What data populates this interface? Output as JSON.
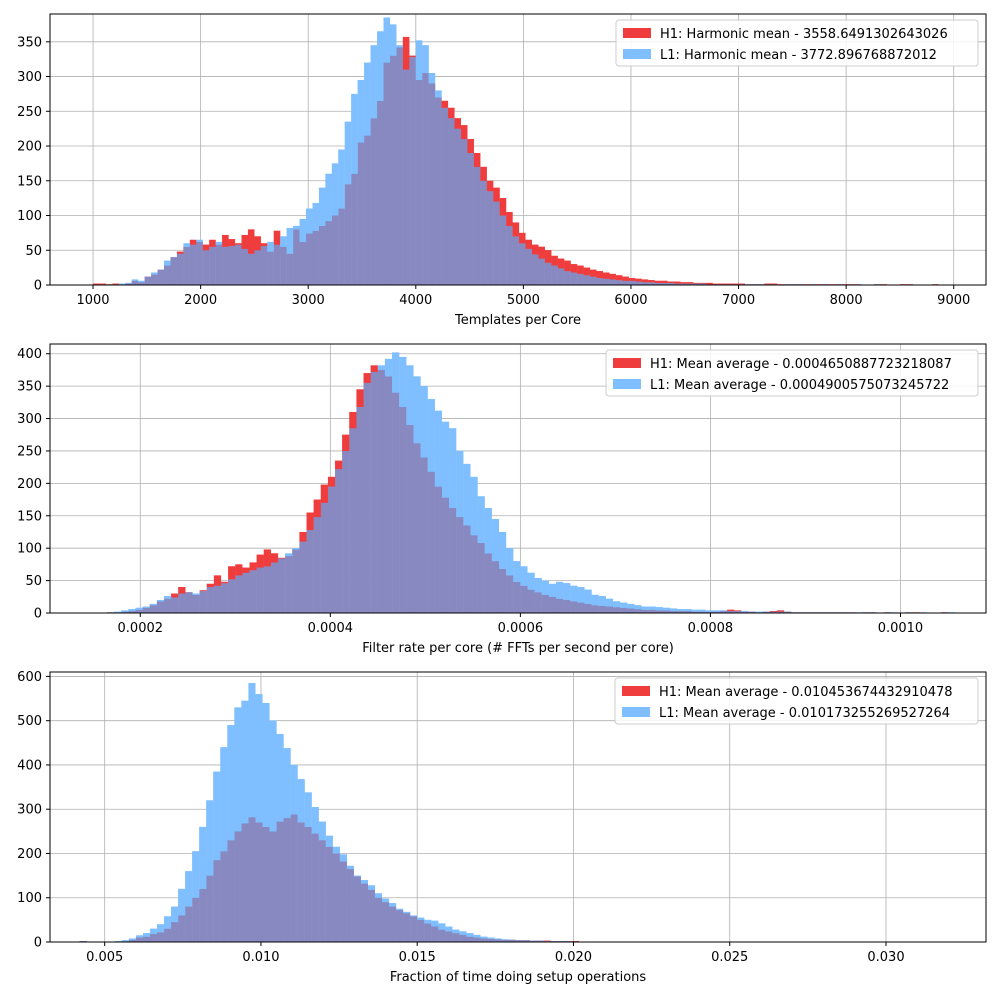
{
  "chart_data": [
    {
      "type": "histogram",
      "xlabel": "Templates per Core",
      "ylabel": "",
      "xlim": [
        600,
        9300
      ],
      "ylim": [
        0,
        390
      ],
      "xticks": [
        1000,
        2000,
        3000,
        4000,
        5000,
        6000,
        7000,
        8000,
        9000
      ],
      "yticks": [
        0,
        50,
        100,
        150,
        200,
        250,
        300,
        350
      ],
      "grid": true,
      "legend_position": "top-right",
      "bin_start": 1000,
      "bin_width": 60,
      "series": [
        {
          "name": "H1: Harmonic mean  - 3558.6491302643026",
          "color": "#ef3c3c",
          "values": [
            2,
            2,
            1,
            2,
            1,
            2,
            6,
            4,
            12,
            15,
            22,
            28,
            40,
            48,
            55,
            65,
            62,
            58,
            65,
            58,
            72,
            66,
            60,
            72,
            80,
            70,
            60,
            48,
            78,
            55,
            45,
            80,
            62,
            74,
            78,
            85,
            92,
            100,
            110,
            145,
            160,
            205,
            215,
            240,
            265,
            320,
            330,
            342,
            357,
            330,
            295,
            305,
            290,
            270,
            265,
            255,
            240,
            230,
            210,
            190,
            170,
            150,
            140,
            125,
            105,
            90,
            75,
            65,
            58,
            55,
            50,
            42,
            38,
            35,
            30,
            28,
            25,
            22,
            20,
            18,
            16,
            14,
            12,
            10,
            9,
            8,
            7,
            6,
            6,
            5,
            5,
            4,
            4,
            3,
            3,
            3,
            2,
            2,
            2,
            2,
            2,
            1,
            1,
            1,
            2,
            2,
            1,
            1,
            1,
            1,
            1,
            1,
            1,
            1,
            1,
            1,
            1,
            1,
            1,
            0,
            0,
            1,
            1,
            0,
            0,
            1,
            1,
            0,
            0,
            0,
            1,
            0,
            0
          ]
        },
        {
          "name": "L1: Harmonic mean  - 3772.896768872012",
          "color": "#7fbfff",
          "values": [
            0,
            1,
            0,
            1,
            2,
            3,
            8,
            6,
            12,
            18,
            22,
            35,
            40,
            45,
            60,
            58,
            65,
            50,
            55,
            62,
            55,
            56,
            58,
            52,
            45,
            50,
            56,
            62,
            58,
            70,
            82,
            85,
            95,
            110,
            118,
            140,
            160,
            175,
            195,
            235,
            275,
            295,
            320,
            345,
            365,
            385,
            375,
            345,
            310,
            328,
            352,
            345,
            305,
            280,
            255,
            240,
            225,
            210,
            190,
            170,
            150,
            135,
            120,
            100,
            85,
            70,
            60,
            52,
            44,
            38,
            32,
            28,
            24,
            20,
            18,
            16,
            14,
            12,
            10,
            9,
            8,
            7,
            6,
            6,
            5,
            4,
            4,
            3,
            3,
            3,
            2,
            2,
            2,
            2,
            2,
            1,
            1,
            1,
            1,
            1,
            1,
            1,
            1,
            1,
            1,
            1,
            0,
            1,
            1,
            1,
            0,
            1,
            0,
            1,
            0,
            1,
            0,
            0,
            1,
            0,
            0,
            1,
            0,
            0,
            0,
            0,
            0,
            0,
            0,
            0,
            0,
            0,
            0
          ]
        }
      ]
    },
    {
      "type": "histogram",
      "xlabel": "Filter rate per core (# FFTs per second per core)",
      "ylabel": "",
      "xlim": [
        0.000105,
        0.00109
      ],
      "ylim": [
        0,
        415
      ],
      "xticks": [
        0.0002,
        0.0004,
        0.0006,
        0.0008,
        0.001
      ],
      "xtick_labels": [
        "0.0002",
        "0.0004",
        "0.0006",
        "0.0008",
        "0.0010"
      ],
      "yticks": [
        0,
        50,
        100,
        150,
        200,
        250,
        300,
        350,
        400
      ],
      "grid": true,
      "legend_position": "top-right",
      "bin_start": 0.00015,
      "bin_width": 7.5e-06,
      "series": [
        {
          "name": "H1: Mean average - 0.0004650887723218087",
          "color": "#ef3c3c",
          "values": [
            0,
            0,
            1,
            0,
            2,
            3,
            5,
            8,
            12,
            18,
            22,
            30,
            40,
            32,
            28,
            35,
            45,
            58,
            48,
            72,
            75,
            70,
            78,
            90,
            98,
            92,
            85,
            88,
            98,
            125,
            155,
            175,
            198,
            210,
            235,
            275,
            310,
            345,
            370,
            382,
            375,
            365,
            340,
            318,
            290,
            262,
            240,
            218,
            195,
            178,
            162,
            148,
            135,
            120,
            108,
            92,
            80,
            68,
            58,
            48,
            42,
            36,
            32,
            28,
            25,
            22,
            20,
            18,
            16,
            14,
            12,
            11,
            10,
            9,
            8,
            7,
            6,
            5,
            5,
            4,
            4,
            3,
            3,
            3,
            2,
            2,
            2,
            2,
            3,
            5,
            4,
            2,
            2,
            1,
            2,
            3,
            4,
            2,
            1,
            1,
            1,
            1,
            1,
            1,
            1,
            1,
            1,
            0,
            1,
            1,
            0,
            1,
            0,
            0,
            1,
            1,
            0,
            0,
            0,
            1,
            0,
            0,
            0,
            0,
            0,
            0,
            0,
            0,
            0,
            0,
            0,
            0,
            0
          ]
        },
        {
          "name": "L1: Mean average - 0.0004900575073245722",
          "color": "#7fbfff",
          "values": [
            0,
            0,
            1,
            2,
            4,
            6,
            8,
            10,
            14,
            20,
            26,
            24,
            30,
            32,
            30,
            34,
            40,
            42,
            46,
            52,
            58,
            62,
            66,
            70,
            72,
            78,
            84,
            92,
            100,
            110,
            128,
            148,
            170,
            195,
            222,
            250,
            285,
            318,
            355,
            372,
            382,
            392,
            402,
            395,
            382,
            365,
            350,
            330,
            312,
            295,
            285,
            250,
            230,
            210,
            180,
            162,
            145,
            125,
            100,
            80,
            72,
            62,
            54,
            50,
            45,
            48,
            46,
            42,
            40,
            36,
            28,
            26,
            22,
            18,
            16,
            14,
            12,
            10,
            10,
            9,
            8,
            7,
            6,
            6,
            5,
            5,
            4,
            4,
            4,
            3,
            3,
            3,
            2,
            2,
            2,
            2,
            2,
            2,
            1,
            1,
            1,
            1,
            1,
            1,
            1,
            1,
            1,
            1,
            1,
            1,
            0,
            1,
            1,
            0,
            1,
            0,
            1,
            0,
            0,
            0,
            1,
            0,
            0,
            0,
            0,
            0,
            0,
            0,
            0,
            0,
            0,
            0,
            0
          ]
        }
      ]
    },
    {
      "type": "histogram",
      "xlabel": "Fraction of time doing setup operations",
      "ylabel": "",
      "xlim": [
        0.00325,
        0.0332
      ],
      "ylim": [
        0,
        610
      ],
      "xticks": [
        0.005,
        0.01,
        0.015,
        0.02,
        0.025,
        0.03
      ],
      "xtick_labels": [
        "0.005",
        "0.010",
        "0.015",
        "0.020",
        "0.025",
        "0.030"
      ],
      "yticks": [
        0,
        100,
        200,
        300,
        400,
        500,
        600
      ],
      "grid": true,
      "legend_position": "top-right",
      "bin_start": 0.0042,
      "bin_width": 0.000225,
      "series": [
        {
          "name": "H1: Mean average - 0.010453674432910478",
          "color": "#ef3c3c",
          "values": [
            2,
            0,
            0,
            0,
            0,
            1,
            2,
            5,
            10,
            12,
            18,
            22,
            30,
            45,
            60,
            80,
            100,
            120,
            150,
            185,
            205,
            230,
            250,
            268,
            282,
            270,
            260,
            250,
            272,
            280,
            288,
            270,
            260,
            245,
            230,
            215,
            200,
            182,
            165,
            148,
            132,
            118,
            100,
            90,
            80,
            72,
            65,
            58,
            50,
            42,
            35,
            28,
            24,
            20,
            16,
            12,
            10,
            8,
            7,
            6,
            5,
            5,
            4,
            4,
            3,
            3,
            3,
            2,
            2,
            2,
            2,
            1,
            1,
            1,
            1,
            1,
            1,
            1,
            1,
            1,
            1,
            1,
            1,
            1,
            1,
            0,
            1,
            0,
            1,
            0,
            0,
            1,
            0,
            0,
            0,
            0,
            0,
            1,
            0,
            0,
            0,
            0,
            0,
            0,
            0,
            0,
            0,
            0,
            0,
            1,
            0,
            0,
            0,
            0,
            0,
            0,
            0,
            0,
            0,
            0,
            0,
            0,
            0,
            0
          ]
        },
        {
          "name": "L1: Mean average - 0.010173255269527264",
          "color": "#7fbfff",
          "values": [
            2,
            0,
            0,
            0,
            0,
            2,
            4,
            8,
            15,
            20,
            30,
            40,
            58,
            80,
            120,
            160,
            205,
            260,
            320,
            385,
            440,
            490,
            530,
            545,
            585,
            560,
            540,
            500,
            470,
            438,
            400,
            368,
            338,
            305,
            272,
            240,
            215,
            198,
            172,
            150,
            140,
            128,
            110,
            98,
            88,
            75,
            68,
            60,
            55,
            50,
            48,
            42,
            35,
            28,
            24,
            20,
            16,
            12,
            10,
            8,
            6,
            5,
            4,
            4,
            3,
            3,
            2,
            2,
            2,
            2,
            1,
            1,
            1,
            1,
            1,
            1,
            1,
            1,
            1,
            0,
            1,
            1,
            0,
            1,
            0,
            0,
            1,
            0,
            0,
            0,
            0,
            1,
            0,
            0,
            0,
            0,
            0,
            0,
            0,
            0,
            0,
            0,
            0,
            0,
            1,
            0,
            0,
            0,
            0,
            0,
            0,
            0,
            0,
            0,
            0,
            0,
            0,
            0,
            0,
            0,
            0,
            1,
            0,
            0
          ]
        }
      ]
    }
  ]
}
